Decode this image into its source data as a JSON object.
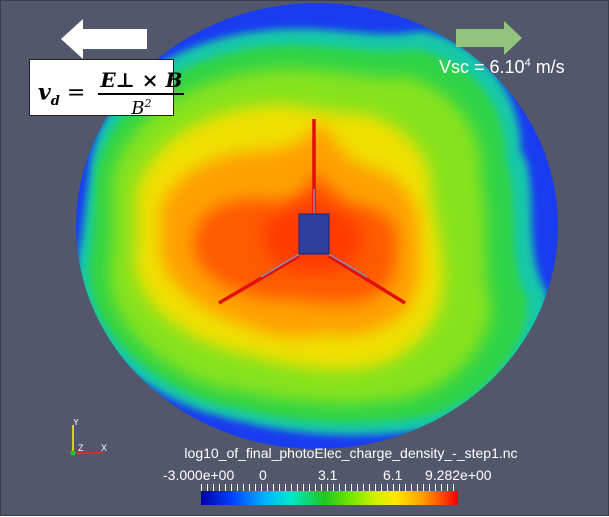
{
  "overlay": {
    "speed_label": "Vsc = 6.10",
    "speed_exp": "4",
    "speed_unit": " m/s",
    "formula": {
      "lhs": "v",
      "lhs_sub": "d",
      "eq": "=",
      "numerator": "E⊥ × B",
      "denominator": "B",
      "denominator_exp": "2"
    }
  },
  "scalarbar": {
    "title": "log10_of_final_photoElec_charge_density_-_step1.nc",
    "labels": [
      "-3.000e+00",
      "0",
      "3.1",
      "6.1",
      "9.282e+00"
    ]
  },
  "axes_triad": {
    "x": "X",
    "y": "Y",
    "z": "Z"
  },
  "colors": {
    "background": "#52576b",
    "arrow_left": "#ffffff",
    "arrow_right": "#93c47d",
    "spacecraft": "#2e3f9c",
    "boom": "#e01010"
  }
}
